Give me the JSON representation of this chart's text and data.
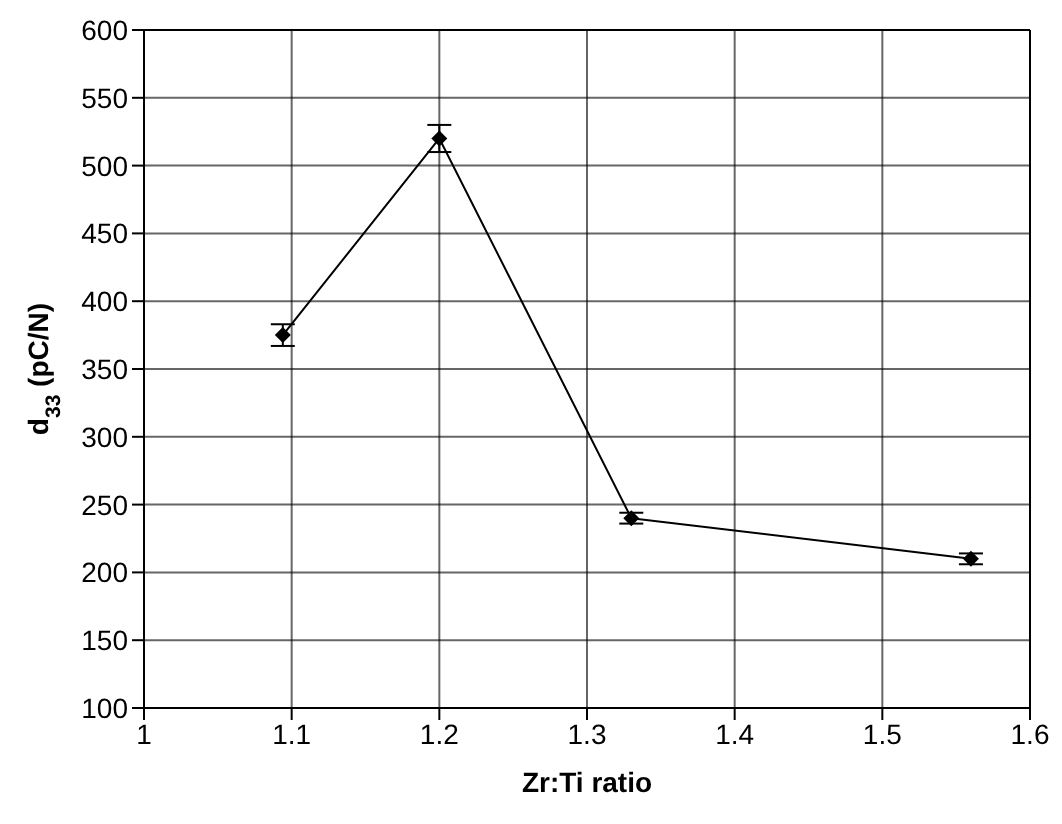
{
  "chart_data": {
    "type": "line",
    "xlabel": "Zr:Ti ratio",
    "ylabel": "d$_{33}$ (pC/N)",
    "x": [
      1.094,
      1.2,
      1.33,
      1.56
    ],
    "series": [
      {
        "color": "#000000",
        "values": [
          375,
          520,
          240,
          210
        ],
        "errors": [
          8,
          10,
          4,
          4
        ]
      }
    ],
    "xlim": [
      1,
      1.6
    ],
    "xticks": [
      1,
      1.1,
      1.2,
      1.3,
      1.4,
      1.5,
      1.6
    ],
    "ylim": [
      100,
      600
    ],
    "yticks": [
      100,
      150,
      200,
      250,
      300,
      350,
      400,
      450,
      500,
      550,
      600
    ],
    "grid": true,
    "marker": "diamond",
    "line_style": "solid"
  }
}
